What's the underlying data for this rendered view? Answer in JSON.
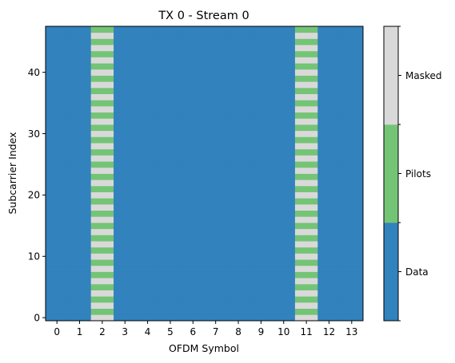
{
  "chart_data": {
    "type": "heatmap",
    "title": "TX 0 - Stream 0",
    "xlabel": "OFDM Symbol",
    "ylabel": "Subcarrier Index",
    "x_ticks": [
      "0",
      "1",
      "2",
      "3",
      "4",
      "5",
      "6",
      "7",
      "8",
      "9",
      "10",
      "11",
      "12",
      "13"
    ],
    "y_ticks": [
      "0",
      "10",
      "20",
      "30",
      "40"
    ],
    "y_tick_values": [
      0,
      10,
      20,
      30,
      40
    ],
    "num_symbols": 14,
    "num_subcarriers": 48,
    "pilot_symbols": [
      2,
      11
    ],
    "pilot_pattern": "pilot subcarriers at odd indices, masked at even indices in pilot symbols; all other resource elements are data",
    "categories": [
      "Data",
      "Pilots",
      "Masked"
    ],
    "colors": {
      "Data": "#3182bd",
      "Pilots": "#74c476",
      "Masked": "#d9d9d9"
    }
  }
}
